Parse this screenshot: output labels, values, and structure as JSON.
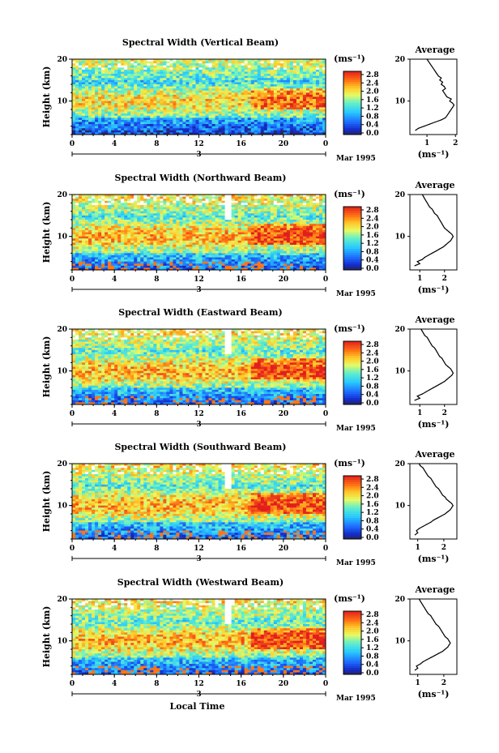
{
  "chart_data": [
    {
      "type": "heatmap",
      "title": "Spectral Width (Vertical Beam)",
      "ylabel": "Height (km)",
      "xticks": [
        "0",
        "4",
        "8",
        "12",
        "16",
        "20",
        "0"
      ],
      "date_label": "3",
      "month_label": "Mar 1995",
      "xlim": [
        0,
        24
      ],
      "ylim": [
        2,
        20
      ],
      "yticks": [
        "20",
        "10"
      ],
      "colorbar": {
        "unit": "(ms⁻¹)",
        "ticks": [
          "2.8",
          "2.4",
          "2.0",
          "1.6",
          "1.2",
          "0.8",
          "0.4",
          "0.0"
        ],
        "range": [
          0,
          2.8
        ]
      },
      "profile": {
        "title": "Average",
        "xlabel": "(ms⁻¹)",
        "xticks": [
          "1",
          "2"
        ],
        "xlim": [
          0.4,
          2.05
        ],
        "yticks": [
          "20",
          "10"
        ],
        "height": [
          3,
          3.5,
          4,
          4.5,
          5,
          5.5,
          6,
          6.5,
          7,
          7.5,
          8,
          8.5,
          9,
          9.5,
          10,
          10.5,
          11,
          11.5,
          12,
          12.5,
          13,
          13.5,
          14,
          14.5,
          15,
          15.5,
          16,
          16.5,
          17,
          17.5,
          18,
          18.5,
          19,
          19.5,
          20
        ],
        "width": [
          0.6,
          0.7,
          0.9,
          1.1,
          1.3,
          1.5,
          1.65,
          1.7,
          1.75,
          1.8,
          1.85,
          1.9,
          1.95,
          1.9,
          1.8,
          1.85,
          1.7,
          1.65,
          1.6,
          1.55,
          1.65,
          1.6,
          1.5,
          1.55,
          1.45,
          1.5,
          1.4,
          1.35,
          1.3,
          1.25,
          1.2,
          1.15,
          1.1,
          1.05,
          1.0
        ]
      }
    },
    {
      "type": "heatmap",
      "title": "Spectral Width (Northward Beam)",
      "ylabel": "Height (km)",
      "xticks": [
        "0",
        "4",
        "8",
        "12",
        "16",
        "20",
        "0"
      ],
      "date_label": "3",
      "month_label": "Mar 1995",
      "xlim": [
        0,
        24
      ],
      "ylim": [
        2,
        20
      ],
      "yticks": [
        "20",
        "10"
      ],
      "colorbar": {
        "unit": "(ms⁻¹)",
        "ticks": [
          "2.8",
          "2.4",
          "2.0",
          "1.6",
          "1.2",
          "0.8",
          "0.4",
          "0.0"
        ],
        "range": [
          0,
          2.8
        ]
      },
      "profile": {
        "title": "Average",
        "xlabel": "(ms⁻¹)",
        "xticks": [
          "1",
          "2"
        ],
        "xlim": [
          0.6,
          2.5
        ],
        "yticks": [
          "20",
          "10"
        ],
        "height": [
          3,
          3.5,
          4,
          4.5,
          5,
          5.5,
          6,
          6.5,
          7,
          7.5,
          8,
          8.5,
          9,
          9.5,
          10,
          10.5,
          11,
          11.5,
          12,
          12.5,
          13,
          13.5,
          14,
          14.5,
          15,
          15.5,
          16,
          16.5,
          17,
          17.5,
          18,
          18.5,
          19,
          19.5,
          20
        ],
        "width": [
          0.8,
          1.0,
          0.9,
          1.1,
          1.2,
          1.35,
          1.5,
          1.65,
          1.8,
          1.95,
          2.05,
          2.15,
          2.25,
          2.3,
          2.35,
          2.3,
          2.2,
          2.1,
          2.0,
          1.95,
          1.9,
          1.85,
          1.8,
          1.75,
          1.7,
          1.6,
          1.55,
          1.5,
          1.4,
          1.35,
          1.3,
          1.25,
          1.2,
          1.15,
          1.1
        ]
      }
    },
    {
      "type": "heatmap",
      "title": "Spectral Width (Eastward Beam)",
      "ylabel": "Height (km)",
      "xticks": [
        "0",
        "4",
        "8",
        "12",
        "16",
        "20",
        "0"
      ],
      "date_label": "3",
      "month_label": "Mar 1995",
      "xlim": [
        0,
        24
      ],
      "ylim": [
        2,
        20
      ],
      "yticks": [
        "20",
        "10"
      ],
      "colorbar": {
        "unit": "(ms⁻¹)",
        "ticks": [
          "2.8",
          "2.4",
          "2.0",
          "1.6",
          "1.2",
          "0.8",
          "0.4",
          "0.0"
        ],
        "range": [
          0,
          2.8
        ]
      },
      "profile": {
        "title": "Average",
        "xlabel": "(ms⁻¹)",
        "xticks": [
          "1",
          "2"
        ],
        "xlim": [
          0.6,
          2.5
        ],
        "yticks": [
          "20",
          "10"
        ],
        "height": [
          3,
          3.5,
          4,
          4.5,
          5,
          5.5,
          6,
          6.5,
          7,
          7.5,
          8,
          8.5,
          9,
          9.5,
          10,
          10.5,
          11,
          11.5,
          12,
          12.5,
          13,
          13.5,
          14,
          14.5,
          15,
          15.5,
          16,
          16.5,
          17,
          17.5,
          18,
          18.5,
          19,
          19.5,
          20
        ],
        "width": [
          0.8,
          1.0,
          0.9,
          1.1,
          1.25,
          1.4,
          1.55,
          1.7,
          1.85,
          2.0,
          2.1,
          2.2,
          2.3,
          2.35,
          2.3,
          2.25,
          2.15,
          2.05,
          2.0,
          1.95,
          1.9,
          1.8,
          1.75,
          1.7,
          1.65,
          1.6,
          1.5,
          1.45,
          1.4,
          1.35,
          1.3,
          1.2,
          1.15,
          1.1,
          1.05
        ]
      }
    },
    {
      "type": "heatmap",
      "title": "Spectral Width (Southward Beam)",
      "ylabel": "Height (km)",
      "xticks": [
        "0",
        "4",
        "8",
        "12",
        "16",
        "20",
        "0"
      ],
      "date_label": "3",
      "month_label": "Mar 1995",
      "xlim": [
        0,
        24
      ],
      "ylim": [
        2,
        20
      ],
      "yticks": [
        "20",
        "10"
      ],
      "colorbar": {
        "unit": "(ms⁻¹)",
        "ticks": [
          "2.8",
          "2.4",
          "2.0",
          "1.6",
          "1.2",
          "0.8",
          "0.4",
          "0.0"
        ],
        "range": [
          0,
          2.8
        ]
      },
      "profile": {
        "title": "Average",
        "xlabel": "(ms⁻¹)",
        "xticks": [
          "1",
          "2"
        ],
        "xlim": [
          0.7,
          2.5
        ],
        "yticks": [
          "20",
          "10"
        ],
        "height": [
          3,
          3.5,
          4,
          4.5,
          5,
          5.5,
          6,
          6.5,
          7,
          7.5,
          8,
          8.5,
          9,
          9.5,
          10,
          10.5,
          11,
          11.5,
          12,
          12.5,
          13,
          13.5,
          14,
          14.5,
          15,
          15.5,
          16,
          16.5,
          17,
          17.5,
          18,
          18.5,
          19,
          19.5,
          20
        ],
        "width": [
          0.9,
          1.0,
          0.95,
          1.05,
          1.2,
          1.35,
          1.5,
          1.6,
          1.75,
          1.9,
          2.05,
          2.15,
          2.25,
          2.3,
          2.35,
          2.3,
          2.2,
          2.1,
          2.05,
          1.95,
          1.9,
          1.85,
          1.8,
          1.7,
          1.65,
          1.6,
          1.55,
          1.5,
          1.4,
          1.35,
          1.3,
          1.25,
          1.2,
          1.1,
          1.05
        ]
      }
    },
    {
      "type": "heatmap",
      "title": "Spectral Width (Westward Beam)",
      "ylabel": "Height (km)",
      "xticks": [
        "0",
        "4",
        "8",
        "12",
        "16",
        "20",
        "0"
      ],
      "date_label": "3",
      "month_label": "Mar 1995",
      "xlabel": "Local Time",
      "xlim": [
        0,
        24
      ],
      "ylim": [
        2,
        20
      ],
      "yticks": [
        "20",
        "10"
      ],
      "colorbar": {
        "unit": "(ms⁻¹)",
        "ticks": [
          "2.8",
          "2.4",
          "2.0",
          "1.6",
          "1.2",
          "0.8",
          "0.4",
          "0.0"
        ],
        "range": [
          0,
          2.8
        ]
      },
      "profile": {
        "title": "Average",
        "xlabel": "(ms⁻¹)",
        "xticks": [
          "1",
          "2"
        ],
        "xlim": [
          0.7,
          2.5
        ],
        "yticks": [
          "20",
          "10"
        ],
        "height": [
          3,
          3.5,
          4,
          4.5,
          5,
          5.5,
          6,
          6.5,
          7,
          7.5,
          8,
          8.5,
          9,
          9.5,
          10,
          10.5,
          11,
          11.5,
          12,
          12.5,
          13,
          13.5,
          14,
          14.5,
          15,
          15.5,
          16,
          16.5,
          17,
          17.5,
          18,
          18.5,
          19,
          19.5,
          20
        ],
        "width": [
          0.9,
          1.0,
          0.95,
          1.1,
          1.2,
          1.35,
          1.5,
          1.65,
          1.8,
          1.95,
          2.05,
          2.15,
          2.2,
          2.25,
          2.2,
          2.15,
          2.05,
          2.0,
          1.95,
          1.9,
          1.85,
          1.8,
          1.7,
          1.65,
          1.6,
          1.55,
          1.5,
          1.4,
          1.35,
          1.3,
          1.25,
          1.2,
          1.15,
          1.1,
          1.05
        ]
      }
    }
  ]
}
